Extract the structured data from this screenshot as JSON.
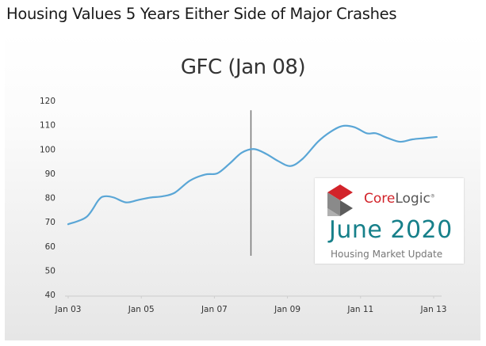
{
  "header": {
    "title": "Housing Values 5 Years Either Side of Major Crashes"
  },
  "chart_data": {
    "type": "line",
    "title": "GFC (Jan 08)",
    "xlabel": "",
    "ylabel": "",
    "ylim": [
      40,
      120
    ],
    "yticks": [
      40,
      50,
      60,
      70,
      80,
      90,
      100,
      110,
      120
    ],
    "xlim": [
      "2003-01",
      "2013-01"
    ],
    "xticks": [
      {
        "date": "2003-01",
        "label": "Jan 03"
      },
      {
        "date": "2005-01",
        "label": "Jan 05"
      },
      {
        "date": "2007-01",
        "label": "Jan 07"
      },
      {
        "date": "2009-01",
        "label": "Jan 09"
      },
      {
        "date": "2011-01",
        "label": "Jan 11"
      },
      {
        "date": "2013-01",
        "label": "Jan 13"
      }
    ],
    "grid": false,
    "marker_line": {
      "date": "2008-01",
      "label": "Jan 08"
    },
    "series": [
      {
        "color": "#5aa6d6",
        "points": [
          [
            "2003-01",
            69
          ],
          [
            "2003-07",
            72
          ],
          [
            "2003-11",
            79
          ],
          [
            "2004-01",
            80.5
          ],
          [
            "2004-04",
            80
          ],
          [
            "2004-08",
            78
          ],
          [
            "2004-12",
            79
          ],
          [
            "2005-04",
            80
          ],
          [
            "2005-08",
            80.5
          ],
          [
            "2005-12",
            82
          ],
          [
            "2006-05",
            87
          ],
          [
            "2006-10",
            89.5
          ],
          [
            "2007-02",
            90
          ],
          [
            "2007-06",
            94
          ],
          [
            "2007-10",
            98.5
          ],
          [
            "2008-02",
            100
          ],
          [
            "2008-06",
            98
          ],
          [
            "2008-10",
            95
          ],
          [
            "2009-02",
            93
          ],
          [
            "2009-06",
            96
          ],
          [
            "2009-11",
            103
          ],
          [
            "2010-03",
            107
          ],
          [
            "2010-07",
            109.5
          ],
          [
            "2010-11",
            109
          ],
          [
            "2011-03",
            106.5
          ],
          [
            "2011-06",
            106.5
          ],
          [
            "2011-10",
            104.5
          ],
          [
            "2012-02",
            103
          ],
          [
            "2012-06",
            104
          ],
          [
            "2012-10",
            104.5
          ],
          [
            "2013-02",
            105
          ]
        ]
      }
    ]
  },
  "logo": {
    "brand_core": "Core",
    "brand_logic": "Logic",
    "edition": "June 2020",
    "subtitle": "Housing Market Update",
    "colors": {
      "red": "#d2232a",
      "teal": "#17808a",
      "gray": "#6d6d6d"
    }
  }
}
